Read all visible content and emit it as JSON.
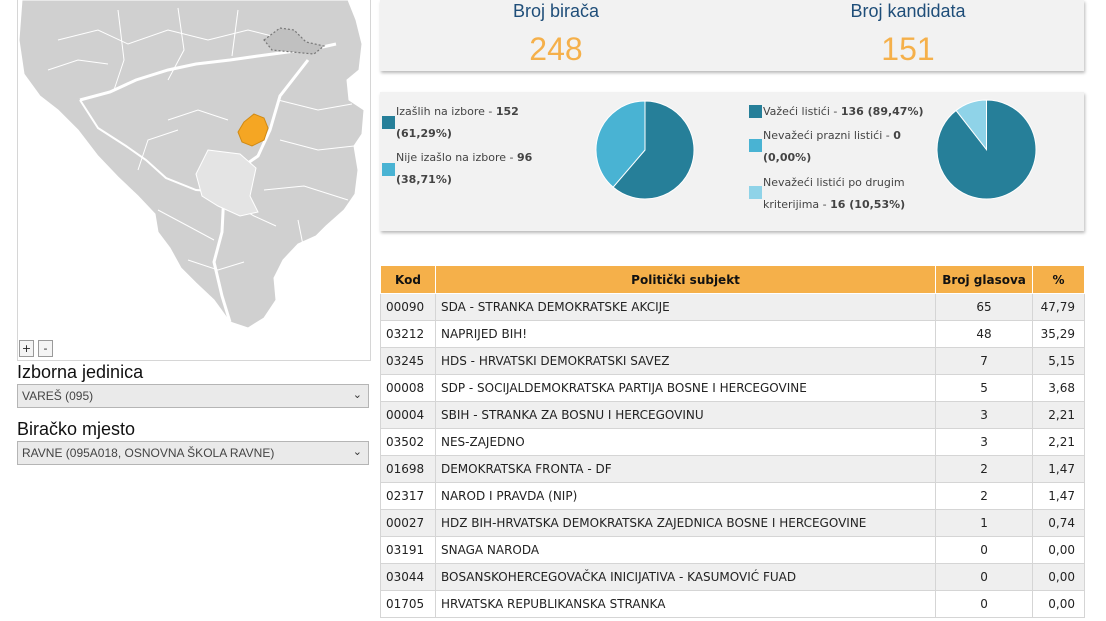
{
  "map": {
    "zoom_in": "+",
    "zoom_out": "-"
  },
  "filters": {
    "unit_label": "Izborna jedinica",
    "unit_value": "VAREŠ (095)",
    "place_label": "Biračko mjesto",
    "place_value": "RAVNE (095A018, OSNOVNA ŠKOLA RAVNE)"
  },
  "stats": {
    "voters_label": "Broj birača",
    "voters_value": "248",
    "candidates_label": "Broj kandidata",
    "candidates_value": "151"
  },
  "turnout": {
    "voted_label": "Izašlih na izbore - ",
    "voted_value": "152",
    "voted_pct": "(61,29%)",
    "notvoted_label": "Nije izašlo na izbore - ",
    "notvoted_value": "96",
    "notvoted_pct": "(38,71%)",
    "slices": [
      61.29,
      38.71
    ],
    "colors": [
      "#267f99",
      "#49b3d3"
    ]
  },
  "ballots": {
    "valid_label": "Važeći listići - ",
    "valid_value": "136 (89,47%)",
    "blank_label": "Nevažeći prazni listići - ",
    "blank_value": "0",
    "blank_pct": "(0,00%)",
    "other_label_1": "Nevažeći listići po drugim",
    "other_label_2": "kriterijima - ",
    "other_value": "16 (10,53%)",
    "slices": [
      89.47,
      0.0,
      10.53
    ],
    "colors": [
      "#267f99",
      "#49b3d3",
      "#8fd3e8"
    ]
  },
  "table": {
    "headers": [
      "Kod",
      "Politički subjekt",
      "Broj glasova",
      "%"
    ],
    "rows": [
      [
        "00090",
        "SDA - STRANKA DEMOKRATSKE AKCIJE",
        "65",
        "47,79"
      ],
      [
        "03212",
        "NAPRIJED BIH!",
        "48",
        "35,29"
      ],
      [
        "03245",
        "HDS - HRVATSKI DEMOKRATSKI SAVEZ",
        "7",
        "5,15"
      ],
      [
        "00008",
        "SDP - SOCIJALDEMOKRATSKA PARTIJA BOSNE I HERCEGOVINE",
        "5",
        "3,68"
      ],
      [
        "00004",
        "SBIH - STRANKA ZA BOSNU I HERCEGOVINU",
        "3",
        "2,21"
      ],
      [
        "03502",
        "NES-ZAJEDNO",
        "3",
        "2,21"
      ],
      [
        "01698",
        "DEMOKRATSKA FRONTA - DF",
        "2",
        "1,47"
      ],
      [
        "02317",
        "NAROD I PRAVDA (NIP)",
        "2",
        "1,47"
      ],
      [
        "00027",
        "HDZ BIH-HRVATSKA DEMOKRATSKA ZAJEDNICA BOSNE I HERCEGOVINE",
        "1",
        "0,74"
      ],
      [
        "03191",
        "SNAGA NARODA",
        "0",
        "0,00"
      ],
      [
        "03044",
        "BOSANSKOHERCEGOVAČKA INICIJATIVA - KASUMOVIĆ FUAD",
        "0",
        "0,00"
      ],
      [
        "01705",
        "HRVATSKA REPUBLIKANSKA STRANKA",
        "0",
        "0,00"
      ]
    ]
  },
  "colors": {
    "accent": "#f5b04a",
    "title_blue": "#1f4e79",
    "selected_region": "#f5a623"
  }
}
